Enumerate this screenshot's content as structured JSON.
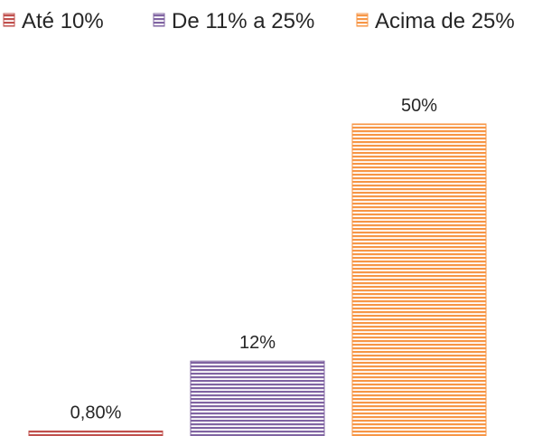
{
  "chart_data": {
    "type": "bar",
    "categories": [
      "Até 10%",
      "De 11% a 25%",
      "Acima de 25%"
    ],
    "values": [
      0.8,
      12,
      50
    ],
    "data_labels": [
      "0,80%",
      "12%",
      "50%"
    ],
    "ylim": [
      0,
      60
    ],
    "grid": false,
    "legend_position": "top",
    "legend": [
      {
        "label": "Até 10%",
        "color": "#c0504d"
      },
      {
        "label": "De 11% a 25%",
        "color": "#8064a2"
      },
      {
        "label": "Acima de 25%",
        "color": "#f79646"
      }
    ],
    "colors": [
      "#c0504d",
      "#8064a2",
      "#f79646"
    ],
    "bar_fill": "horizontal-stripes"
  }
}
